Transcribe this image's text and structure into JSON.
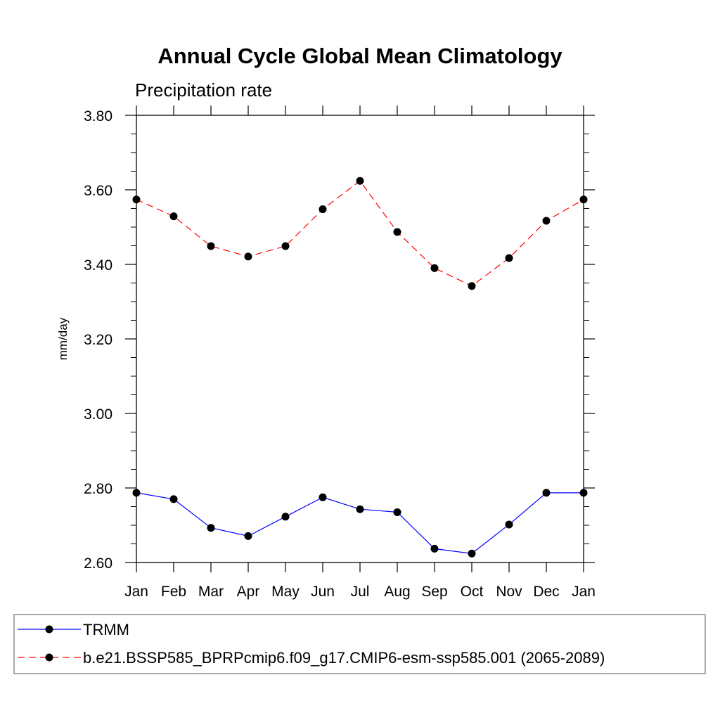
{
  "chart_data": {
    "type": "line",
    "title": "Annual Cycle Global Mean Climatology",
    "subtitle": "Precipitation rate",
    "xlabel": "",
    "ylabel": "mm/day",
    "categories": [
      "Jan",
      "Feb",
      "Mar",
      "Apr",
      "May",
      "Jun",
      "Jul",
      "Aug",
      "Sep",
      "Oct",
      "Nov",
      "Dec",
      "Jan"
    ],
    "ylim": [
      2.6,
      3.8
    ],
    "yticks": [
      "2.60",
      "2.80",
      "3.00",
      "3.20",
      "3.40",
      "3.60",
      "3.80"
    ],
    "series": [
      {
        "name": "TRMM",
        "color": "#0000ff",
        "line_style": "solid",
        "marker": "filled-circle",
        "values": [
          2.787,
          2.77,
          2.693,
          2.671,
          2.723,
          2.775,
          2.743,
          2.735,
          2.637,
          2.624,
          2.702,
          2.787,
          2.787
        ]
      },
      {
        "name": "b.e21.BSSP585_BPRPcmip6.f09_g17.CMIP6-esm-ssp585.001 (2065-2089)",
        "color": "#ff0000",
        "line_style": "dashed",
        "marker": "filled-circle",
        "values": [
          3.574,
          3.529,
          3.449,
          3.421,
          3.449,
          3.548,
          3.624,
          3.487,
          3.39,
          3.342,
          3.417,
          3.517,
          3.574
        ]
      }
    ],
    "legend_position": "bottom"
  }
}
